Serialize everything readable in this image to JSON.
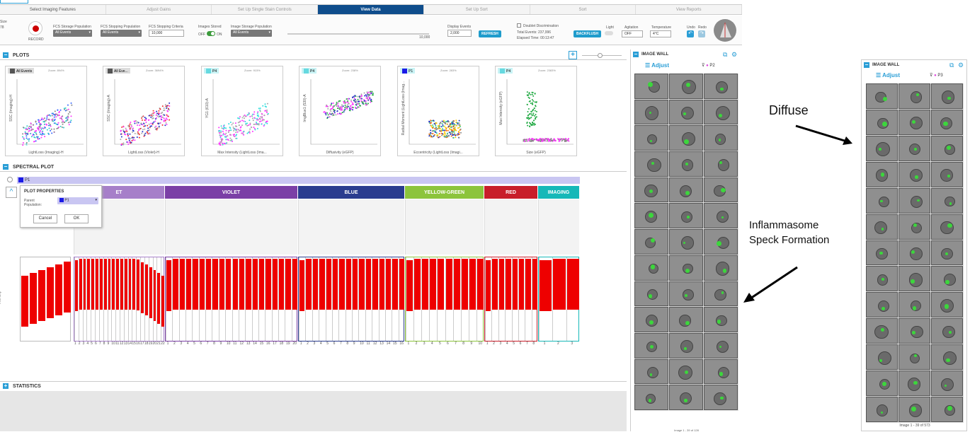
{
  "workflow": {
    "steps": [
      "Select Imaging Features",
      "Adjust Gains",
      "Set Up Single Stain Controls",
      "View Data",
      "Set Up Sort",
      "Sort",
      "View Reports"
    ],
    "active": "View Data"
  },
  "toolbar": {
    "record_label": "RECORD",
    "fcs_storage_label": "FCS Storage Population",
    "fcs_storage_value": "All Events",
    "fcs_stopping_pop_label": "FCS Stopping Population",
    "fcs_stopping_pop_value": "All Events",
    "fcs_stopping_criteria_label": "FCS Stopping Criteria",
    "fcs_stopping_criteria_value": "10,000",
    "images_stored_label": "Images Stored",
    "toggle_off": "OFF",
    "toggle_on": "ON",
    "image_storage_label": "Image Storage Population",
    "image_storage_value": "All Events",
    "slider_max": "10,000",
    "display_events_label": "Display Events",
    "display_events_value": "2,000",
    "refresh_label": "REFRESH",
    "doublet_label": "Doublet Discrimination",
    "total_events": "Total Events:  237,996",
    "elapsed_time": "Elapsed Time:  00:13:47",
    "backflush_label": "BACKFLUSH",
    "light_label": "Light",
    "agitation_label": "Agitation",
    "agitation_value": "OFF",
    "temperature_label": "Temperature",
    "temperature_value": "4°C",
    "undo_label": "Undo",
    "redo_label": "Redo"
  },
  "plots": {
    "title": "PLOTS",
    "cards": [
      {
        "tag": "All Events",
        "zoom": "Zoom: 894%",
        "xlabel": "LightLoss (Imaging)-H",
        "ylabel": "SSC (Imaging)-H",
        "tagcolor": "#555555"
      },
      {
        "tag": "All Eve...",
        "zoom": "Zoom: 3694%",
        "xlabel": "LightLoss (Violet)-H",
        "ylabel": "SSC (Imaging)-A",
        "tagcolor": "#555555"
      },
      {
        "tag": "P4",
        "zoom": "Zoom: 915%",
        "xlabel": "Max Intensity (LightLoss (Ima...",
        "ylabel": "YG1 (610)-A",
        "tagcolor": "#66d9e0"
      },
      {
        "tag": "P4",
        "zoom": "Zoom: 238%",
        "xlabel": "Diffusivity (eGFP)",
        "ylabel": "ImgBlue1 (530)-A",
        "tagcolor": "#66d9e0"
      },
      {
        "tag": "P1",
        "zoom": "Zoom: 283%",
        "xlabel": "Eccentricity (LightLoss (Imagi...",
        "ylabel": "Radial Moment (LightLoss (Imag...",
        "tagcolor": "#1a1ae6"
      },
      {
        "tag": "P4",
        "zoom": "Zoom: 2383%",
        "xlabel": "Size (eGFP)",
        "ylabel": "Max Intensity (eGFP)",
        "tagcolor": "#66d9e0"
      }
    ]
  },
  "spectral": {
    "title": "SPECTRAL PLOT",
    "pop_tag": "P1",
    "props_title": "PLOT PROPERTIES",
    "parent_label": "Parent Population:",
    "parent_value": "P1",
    "cancel": "Cancel",
    "ok": "OK",
    "bands": [
      {
        "name": "ET",
        "color": "#a67fc9",
        "left": 100,
        "width": 128,
        "n": 22
      },
      {
        "name": "VIOLET",
        "color": "#7b3fa6",
        "left": 229,
        "width": 187,
        "n": 20
      },
      {
        "name": "BLUE",
        "color": "#2a3c8f",
        "left": 417,
        "width": 150,
        "n": 16
      },
      {
        "name": "YELLOW-GREEN",
        "color": "#8cc43c",
        "left": 568,
        "width": 111,
        "n": 10
      },
      {
        "name": "RED",
        "color": "#c81e2a",
        "left": 680,
        "width": 75,
        "n": 8
      },
      {
        "name": "IMAGING",
        "color": "#16b8b8",
        "left": 756,
        "width": 58,
        "n": 3
      }
    ],
    "ylabel": "Intensity"
  },
  "statistics": {
    "title": "STATISTICS"
  },
  "wall_left": {
    "title": "IMAGE WALL",
    "adjust": "Adjust",
    "pop": "P2",
    "footer": "Image 1 - 39 of 128"
  },
  "wall_right": {
    "title": "IMAGE WALL",
    "adjust": "Adjust",
    "pop": "P3",
    "footer": "Image 1 - 39 of 573"
  },
  "annotations": {
    "diffuse": "Diffuse",
    "speck": "Inflammasome\nSpeck Formation"
  }
}
